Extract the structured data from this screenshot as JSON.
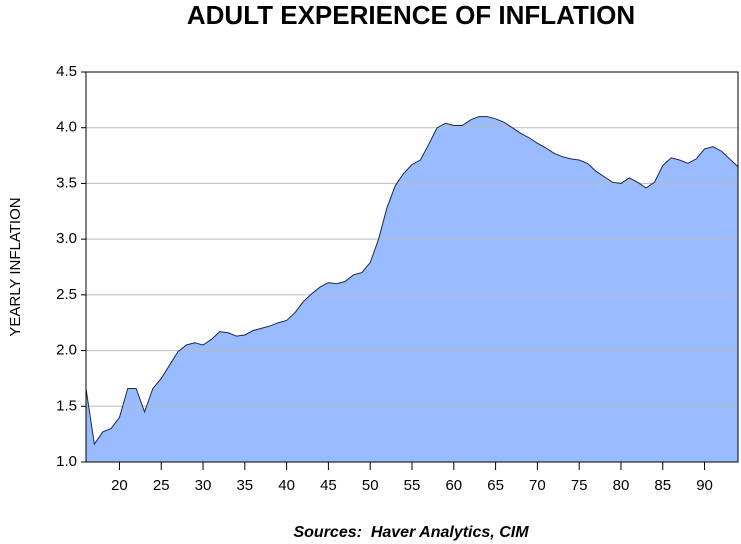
{
  "chart_data": {
    "type": "area",
    "title": "ADULT EXPERIENCE OF INFLATION",
    "y_label": "YEARLY INFLATION",
    "source": "Sources:  Haver Analytics, CIM",
    "x": [
      16,
      17,
      18,
      19,
      20,
      21,
      22,
      23,
      24,
      25,
      26,
      27,
      28,
      29,
      30,
      31,
      32,
      33,
      34,
      35,
      36,
      37,
      38,
      39,
      40,
      41,
      42,
      43,
      44,
      45,
      46,
      47,
      48,
      49,
      50,
      51,
      52,
      53,
      54,
      55,
      56,
      57,
      58,
      59,
      60,
      61,
      62,
      63,
      64,
      65,
      66,
      67,
      68,
      69,
      70,
      71,
      72,
      73,
      74,
      75,
      76,
      77,
      78,
      79,
      80,
      81,
      82,
      83,
      84,
      85,
      86,
      87,
      88,
      89,
      90,
      91,
      92,
      93,
      94
    ],
    "series": [
      {
        "color": "#99bbff",
        "values": [
          1.66,
          1.16,
          1.27,
          1.3,
          1.4,
          1.66,
          1.66,
          1.45,
          1.66,
          1.75,
          1.87,
          1.99,
          2.05,
          2.07,
          2.05,
          2.1,
          2.17,
          2.16,
          2.13,
          2.14,
          2.18,
          2.2,
          2.22,
          2.25,
          2.27,
          2.34,
          2.44,
          2.51,
          2.57,
          2.61,
          2.6,
          2.62,
          2.68,
          2.7,
          2.79,
          3.0,
          3.28,
          3.48,
          3.59,
          3.67,
          3.71,
          3.85,
          4.0,
          4.04,
          4.02,
          4.02,
          4.07,
          4.1,
          4.1,
          4.08,
          4.05,
          4.0,
          3.95,
          3.91,
          3.86,
          3.82,
          3.77,
          3.74,
          3.72,
          3.71,
          3.68,
          3.61,
          3.56,
          3.51,
          3.5,
          3.55,
          3.51,
          3.46,
          3.51,
          3.66,
          3.73,
          3.71,
          3.68,
          3.72,
          3.81,
          3.83,
          3.79,
          3.72,
          3.65
        ]
      }
    ],
    "xlim": [
      16,
      94
    ],
    "xticks": [
      20,
      25,
      30,
      35,
      40,
      45,
      50,
      55,
      60,
      65,
      70,
      75,
      80,
      85,
      90
    ],
    "ylim": [
      1,
      4.5
    ],
    "yticks": [
      {
        "value": 1,
        "label": "1.0"
      },
      1.5,
      {
        "value": 2,
        "label": "2.0"
      },
      2.5,
      {
        "value": 3,
        "label": "3.0"
      },
      3.5,
      {
        "value": 4,
        "label": "4.0"
      },
      4.5
    ],
    "grid": true
  }
}
